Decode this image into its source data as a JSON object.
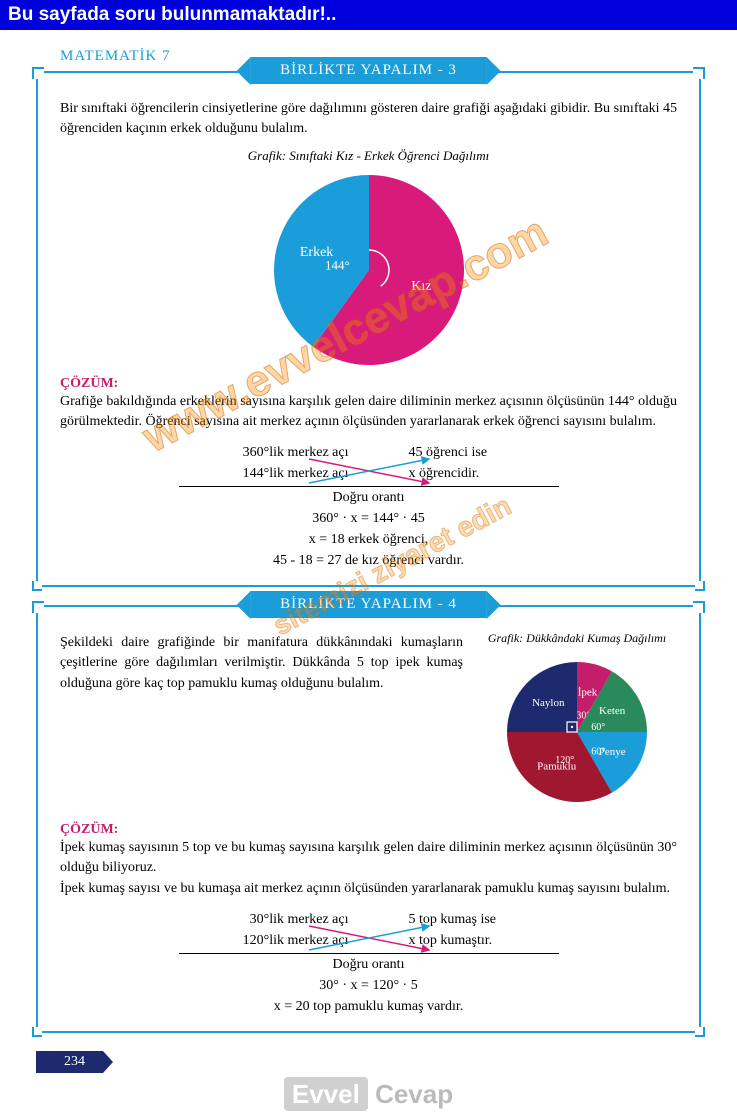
{
  "banner": "Bu sayfada soru bulunmamaktadır!..",
  "header": "MATEMATİK 7",
  "pageNumber": "234",
  "footer": {
    "left": "Evvel",
    "right": "Cevap"
  },
  "watermark1": "www.evvelcevap.com",
  "watermark2": "sitemizi ziyaret edin",
  "ex3": {
    "title": "BİRLİKTE YAPALIM - 3",
    "problem": "Bir sınıftaki öğrencilerin cinsiyetlerine göre dağılımını gösteren daire grafiği aşağıdaki gibidir. Bu sınıftaki 45 öğrenciden kaçının erkek olduğunu bulalım.",
    "chartTitle": "Grafik: Sınıftaki Kız - Erkek Öğrenci Dağılımı",
    "chart": {
      "type": "pie",
      "slices": [
        {
          "label": "Kız",
          "angle": 216,
          "color": "#d81b7a"
        },
        {
          "label": "Erkek",
          "angle": 144,
          "color": "#1a9dd9",
          "angleLabel": "144°"
        }
      ],
      "diameter": 200,
      "labelColor": "#ffffff",
      "labelFontSize": 14
    },
    "solutionLabel": "ÇÖZÜM:",
    "solutionIntro": "Grafiğe bakıldığında erkeklerin sayısına karşılık gelen daire diliminin merkez açısının ölçüsünün 144° olduğu görülmektedir. Öğrenci sayısına ait merkez açının ölçüsünden yararlanarak erkek öğrenci sayısını bulalım.",
    "prop": {
      "r1l": "360°lik merkez açı",
      "r1r": "45 öğrenci ise",
      "r2l": "144°lik merkez açı",
      "r2r": "x öğrencidir.",
      "lines": [
        "Doğru orantı",
        "360° · x = 144° · 45",
        "x = 18 erkek öğrenci,",
        "45 - 18 = 27 de kız öğrenci vardır."
      ]
    }
  },
  "ex4": {
    "title": "BİRLİKTE YAPALIM - 4",
    "problem": "Şekildeki daire grafiğinde bir manifatura dükkânındaki kumaşların çeşitlerine göre dağılımları verilmiştir. Dükkânda 5 top ipek kumaş olduğuna göre kaç top pamuklu kumaş olduğunu bulalım.",
    "chartTitle": "Grafik: Dükkândaki Kumaş Dağılımı",
    "chart": {
      "type": "pie",
      "diameter": 150,
      "slices": [
        {
          "label": "İpek",
          "angle": 30,
          "angleLabel": "30°",
          "color": "#c41e6a"
        },
        {
          "label": "Keten",
          "angle": 60,
          "angleLabel": "60°",
          "color": "#2a8a5c"
        },
        {
          "label": "Penye",
          "angle": 60,
          "angleLabel": "60°",
          "color": "#1a9dd9"
        },
        {
          "label": "Pamuklu",
          "angle": 120,
          "angleLabel": "120°",
          "color": "#a01830"
        },
        {
          "label": "Naylon",
          "angle": 90,
          "color": "#1e2a6e"
        }
      ],
      "labelColor": "#ffffff",
      "labelFontSize": 11
    },
    "solutionLabel": "ÇÖZÜM:",
    "solutionIntro": "İpek kumaş sayısının 5 top ve bu kumaş sayısına karşılık gelen daire diliminin merkez açısının ölçüsünün 30° olduğu biliyoruz.\nİpek kumaş sayısı ve bu kumaşa ait merkez açının ölçüsünden yararlanarak pamuklu kumaş sayısını bulalım.",
    "prop": {
      "r1l": "30°lik merkez açı",
      "r1r": "5 top kumaş ise",
      "r2l": "120°lik merkez açı",
      "r2r": "x top kumaştır.",
      "lines": [
        "Doğru orantı",
        "30° · x = 120° · 5",
        "x = 20 top pamuklu kumaş vardır."
      ]
    }
  },
  "arrowColors": {
    "pink": "#d81b7a",
    "cyan": "#1a9dd9"
  }
}
